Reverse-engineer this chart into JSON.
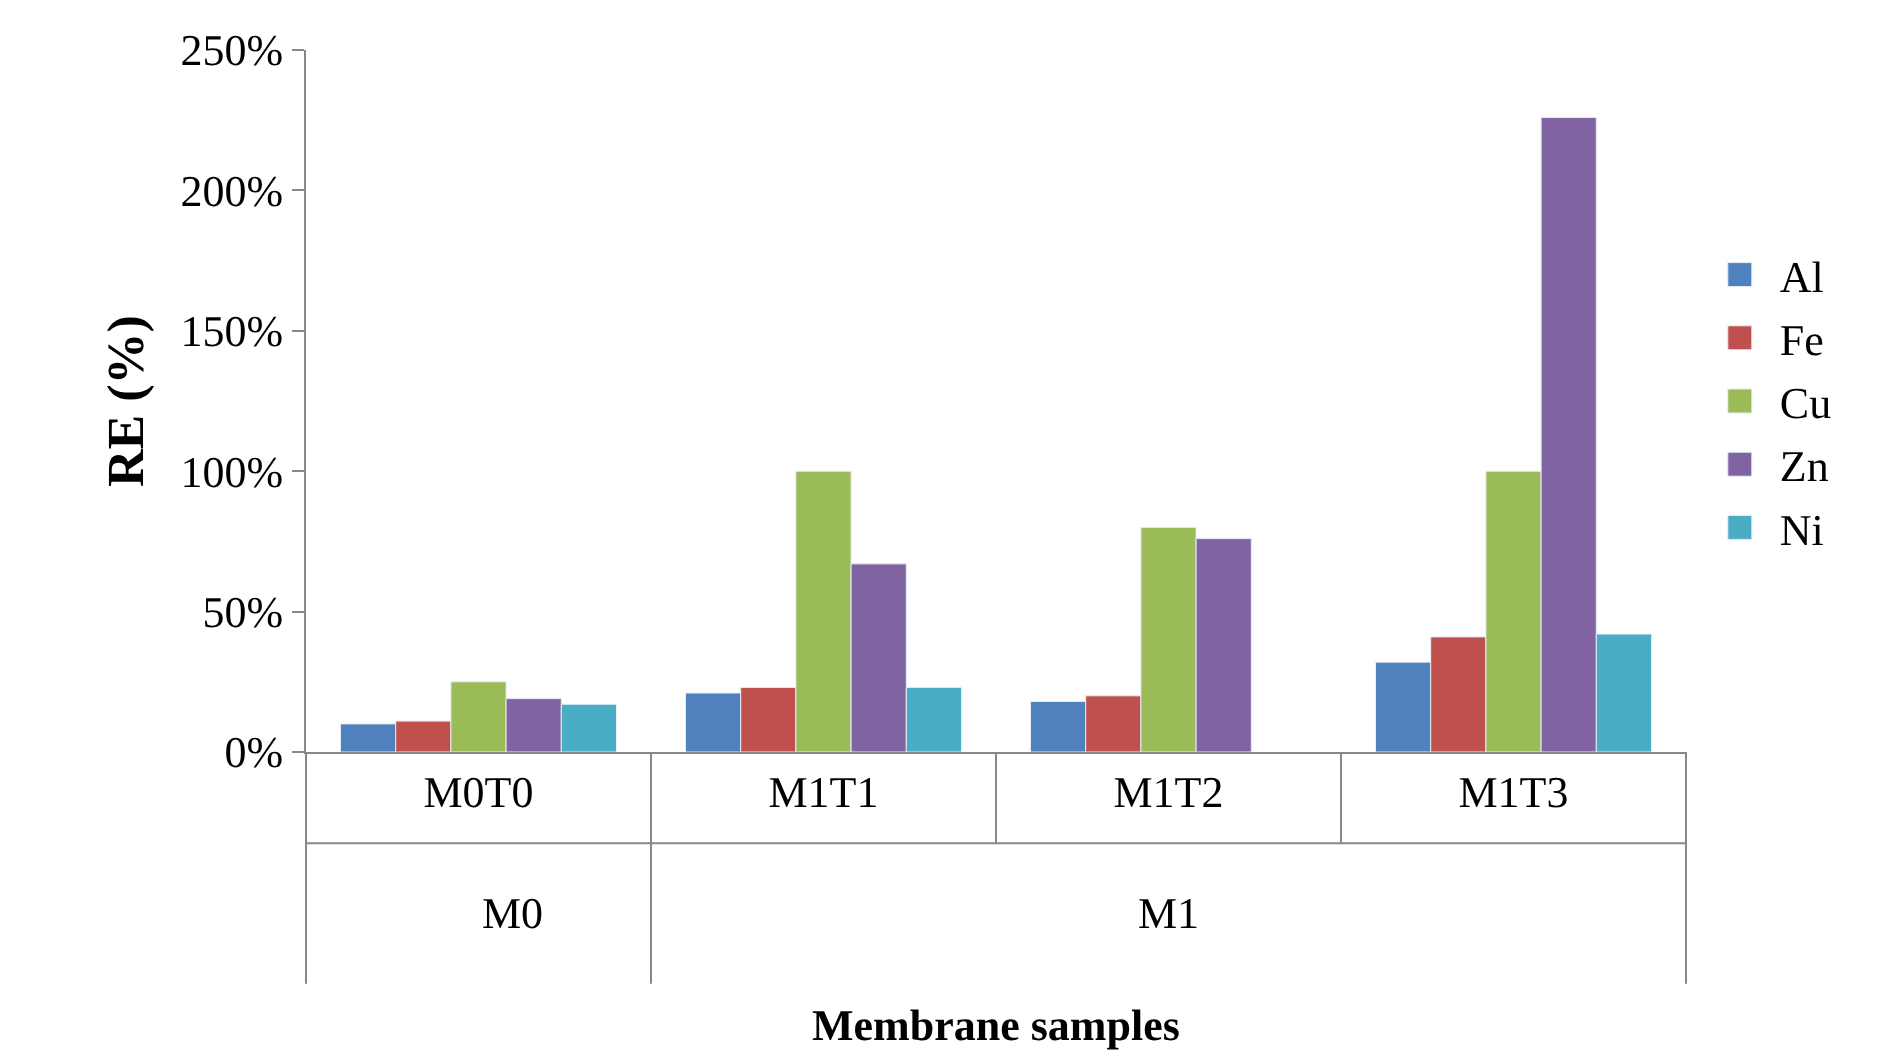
{
  "chart_data": {
    "type": "bar",
    "xlabel": "Membrane samples",
    "ylabel": "RE (%)",
    "categories": [
      "M0T0",
      "M1T1",
      "M1T2",
      "M1T3"
    ],
    "series": [
      {
        "name": "Al",
        "color": "#4f81bd",
        "values": [
          10,
          21,
          18,
          32
        ]
      },
      {
        "name": "Fe",
        "color": "#c0504d",
        "values": [
          11,
          23,
          20,
          41
        ]
      },
      {
        "name": "Cu",
        "color": "#9bbb59",
        "values": [
          25,
          100,
          80,
          100
        ]
      },
      {
        "name": "Zn",
        "color": "#8064a2",
        "values": [
          19,
          67,
          76,
          226
        ]
      },
      {
        "name": "Ni",
        "color": "#4bacc6",
        "values": [
          17,
          23,
          null,
          42
        ]
      }
    ],
    "ylim": [
      0,
      250
    ],
    "yticks": [
      {
        "value": 0,
        "label": "0%"
      },
      {
        "value": 50,
        "label": "50%"
      },
      {
        "value": 100,
        "label": "100%"
      },
      {
        "value": 150,
        "label": "150%"
      },
      {
        "value": 200,
        "label": "200%"
      },
      {
        "value": 250,
        "label": "250%"
      }
    ],
    "annotations": [
      "M0",
      "M1"
    ],
    "legend": "right"
  }
}
